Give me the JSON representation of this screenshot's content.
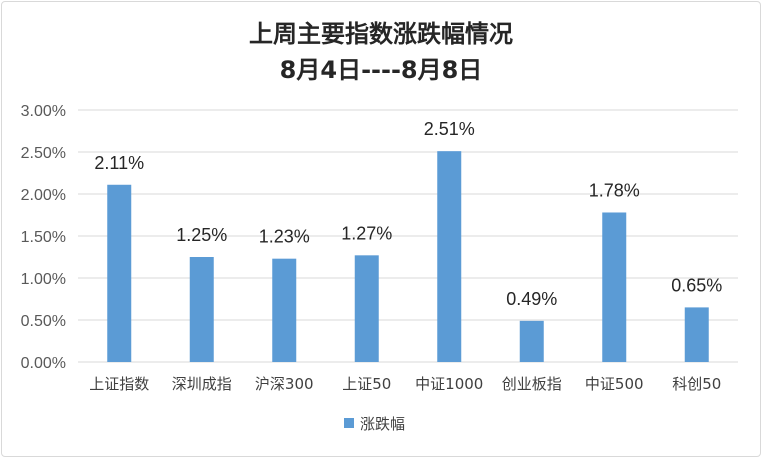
{
  "chart_data": {
    "type": "bar",
    "title": "上周主要指数涨跌幅情况",
    "subtitle": "8月4日----8月8日",
    "categories": [
      "上证指数",
      "深圳成指",
      "沪深300",
      "上证50",
      "中证1000",
      "创业板指",
      "中证500",
      "科创50"
    ],
    "series": [
      {
        "name": "涨跌幅",
        "values": [
          2.11,
          1.25,
          1.23,
          1.27,
          2.51,
          0.49,
          1.78,
          0.65
        ],
        "labels": [
          "2.11%",
          "1.25%",
          "1.23%",
          "1.27%",
          "2.51%",
          "0.49%",
          "1.78%",
          "0.65%"
        ]
      }
    ],
    "y_ticks": [
      "0.00%",
      "0.50%",
      "1.00%",
      "1.50%",
      "2.00%",
      "2.50%",
      "3.00%"
    ],
    "ylim": [
      0,
      3
    ],
    "grid": true,
    "legend_position": "bottom",
    "bar_color": "#5b9bd5",
    "grid_color": "#d9d9d9"
  }
}
